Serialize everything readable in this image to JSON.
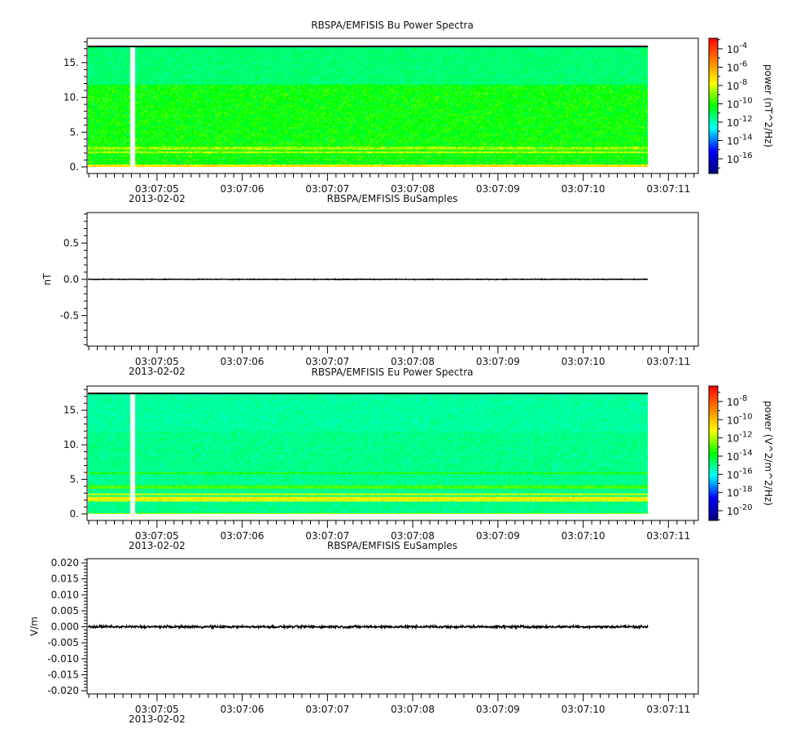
{
  "colors": {
    "axis": "#000000",
    "trace": "#000000",
    "background": "#ffffff"
  },
  "colormap": [
    "#00007f",
    "#0000ff",
    "#00ffff",
    "#00ff00",
    "#ffff00",
    "#ff7f00",
    "#ff0000"
  ],
  "chart_data": [
    {
      "type": "heatmap",
      "title": "RBSPA/EMFISIS  Bu Power Spectra",
      "xlabel": "",
      "ylabel": "",
      "date_label": "2013-02-02",
      "xlim": [
        "03:07:04.18",
        "03:07:11.35"
      ],
      "x_ticks": [
        "03:07:05",
        "03:07:06",
        "03:07:07",
        "03:07:08",
        "03:07:09",
        "03:07:10",
        "03:07:11"
      ],
      "ylim": [
        -0.94,
        18.5
      ],
      "y_ticks": [
        "0.",
        "5.",
        "10.",
        "15."
      ],
      "y_tick_values": [
        0,
        5,
        10,
        15
      ],
      "data_time_range": [
        "03:07:04.19",
        "03:07:10.76"
      ],
      "data_gap": [
        "03:07:04.68",
        "03:07:04.74"
      ],
      "y_max_data": 17.5,
      "colorbar": {
        "label": "power (nT^2/Hz)",
        "log_range": [
          -17.6,
          -2.85
        ],
        "tick_exponents": [
          "-4",
          "-6",
          "-8",
          "-10",
          "-12",
          "-14",
          "-16"
        ],
        "tick_base": "10"
      },
      "levels": {
        "background_log": -10.2,
        "upper_band_log": -11.3,
        "upper_band_from": 12,
        "lines": [
          {
            "y": 2.2,
            "log": -8.4
          },
          {
            "y": 2.8,
            "log": -8.8
          }
        ],
        "floor_log": -7.2
      }
    },
    {
      "type": "line",
      "title": "RBSPA/EMFISIS  BuSamples",
      "xlabel": "",
      "ylabel": "nT",
      "date_label": "2013-02-02",
      "xlim": [
        "03:07:04.18",
        "03:07:11.35"
      ],
      "x_ticks": [
        "03:07:05",
        "03:07:06",
        "03:07:07",
        "03:07:08",
        "03:07:09",
        "03:07:10",
        "03:07:11"
      ],
      "ylim": [
        -0.92,
        0.92
      ],
      "y_ticks": [
        "-0.5",
        "0.0",
        "0.5"
      ],
      "y_tick_values": [
        -0.5,
        0,
        0.5
      ],
      "data_time_range": [
        "03:07:04.19",
        "03:07:10.76"
      ],
      "trace_level": 0.0,
      "trace_amplitude": 0.004
    },
    {
      "type": "heatmap",
      "title": "RBSPA/EMFISIS  Eu Power Spectra",
      "xlabel": "",
      "ylabel": "",
      "date_label": "2013-02-02",
      "xlim": [
        "03:07:04.18",
        "03:07:11.35"
      ],
      "x_ticks": [
        "03:07:05",
        "03:07:06",
        "03:07:07",
        "03:07:08",
        "03:07:09",
        "03:07:10",
        "03:07:11"
      ],
      "ylim": [
        -0.94,
        18.5
      ],
      "y_ticks": [
        "0.",
        "5.",
        "10.",
        "15."
      ],
      "y_tick_values": [
        0,
        5,
        10,
        15
      ],
      "data_time_range": [
        "03:07:04.19",
        "03:07:10.76"
      ],
      "data_gap": [
        "03:07:04.68",
        "03:07:04.74"
      ],
      "y_max_data": 17.5,
      "colorbar": {
        "label": "power (V^2/m^2/Hz)",
        "log_range": [
          -21.07,
          -6.3
        ],
        "tick_exponents": [
          "-8",
          "-10",
          "-12",
          "-14",
          "-16",
          "-18",
          "-20"
        ],
        "tick_base": "10"
      },
      "levels": {
        "background_log": -15.0,
        "upper_band_log": -15.2,
        "upper_band_from": 12,
        "lines": [
          {
            "y": 6.0,
            "log": -13.3
          },
          {
            "y": 4.0,
            "log": -13.0
          },
          {
            "y": 2.9,
            "log": -11.6
          },
          {
            "y": 2.4,
            "log": -10.9
          },
          {
            "y": 2.0,
            "log": -11.8
          }
        ],
        "floor_log": -12.2
      }
    },
    {
      "type": "line",
      "title": "RBSPA/EMFISIS  EuSamples",
      "xlabel": "",
      "ylabel": "V/m",
      "date_label": "2013-02-02",
      "xlim": [
        "03:07:04.18",
        "03:07:11.35"
      ],
      "x_ticks": [
        "03:07:05",
        "03:07:06",
        "03:07:07",
        "03:07:08",
        "03:07:09",
        "03:07:10",
        "03:07:11"
      ],
      "ylim": [
        -0.021,
        0.0213
      ],
      "y_ticks": [
        "-0.020",
        "-0.015",
        "-0.010",
        "-0.005",
        "0.000",
        "0.005",
        "0.010",
        "0.015",
        "0.020"
      ],
      "y_tick_values": [
        -0.02,
        -0.015,
        -0.01,
        -0.005,
        0,
        0.005,
        0.01,
        0.015,
        0.02
      ],
      "data_time_range": [
        "03:07:04.19",
        "03:07:10.76"
      ],
      "trace_level": 0.0,
      "trace_amplitude": 0.0003
    }
  ]
}
